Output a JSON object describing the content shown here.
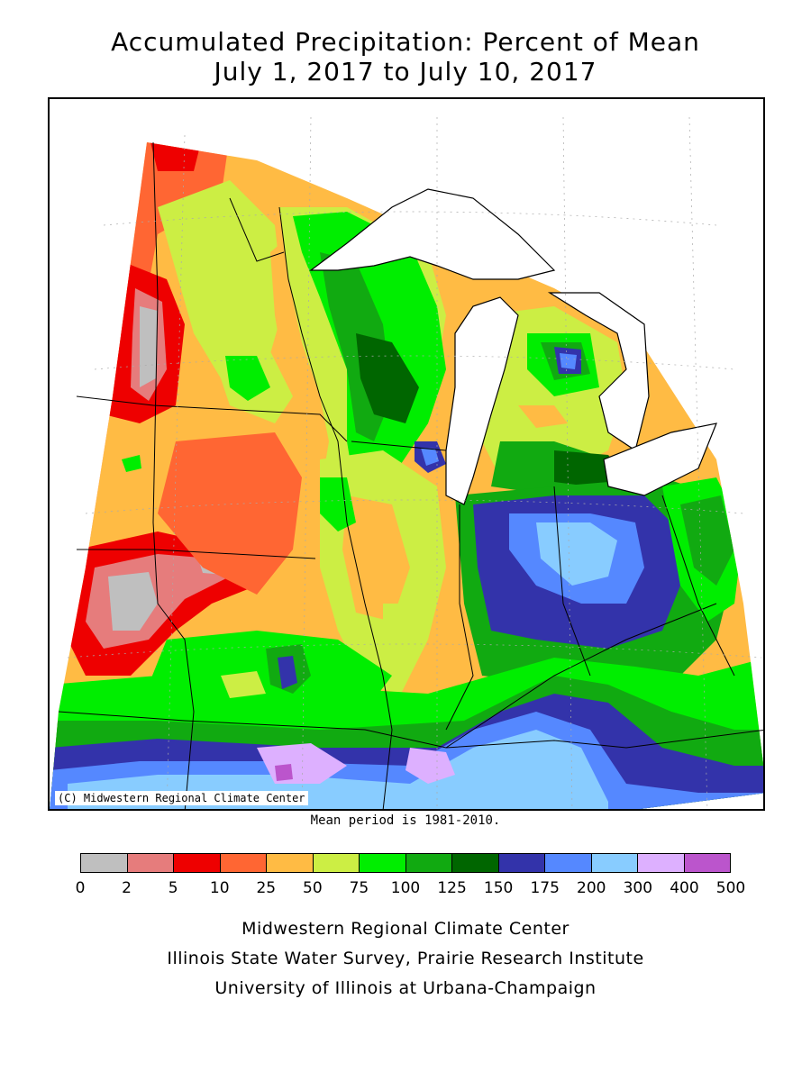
{
  "title_line1": "Accumulated Precipitation: Percent of Mean",
  "title_line2": "July 1, 2017 to July 10, 2017",
  "copyright": "(C) Midwestern Regional Climate Center",
  "mean_period": "Mean period is 1981-2010.",
  "legend": {
    "ticks": [
      "0",
      "2",
      "5",
      "10",
      "25",
      "50",
      "75",
      "100",
      "125",
      "150",
      "175",
      "200",
      "300",
      "400",
      "500"
    ],
    "colors": [
      "#bfbfbf",
      "#e67c7c",
      "#ee0000",
      "#ff6633",
      "#ffbb44",
      "#ccee44",
      "#00ee00",
      "#11aa11",
      "#006600",
      "#3333aa",
      "#5588ff",
      "#88ccff",
      "#ddb0ff",
      "#bb55cc"
    ]
  },
  "credits": [
    "Midwestern Regional Climate Center",
    "Illinois State Water Survey, Prairie Research Institute",
    "University of Illinois at Urbana-Champaign"
  ]
}
